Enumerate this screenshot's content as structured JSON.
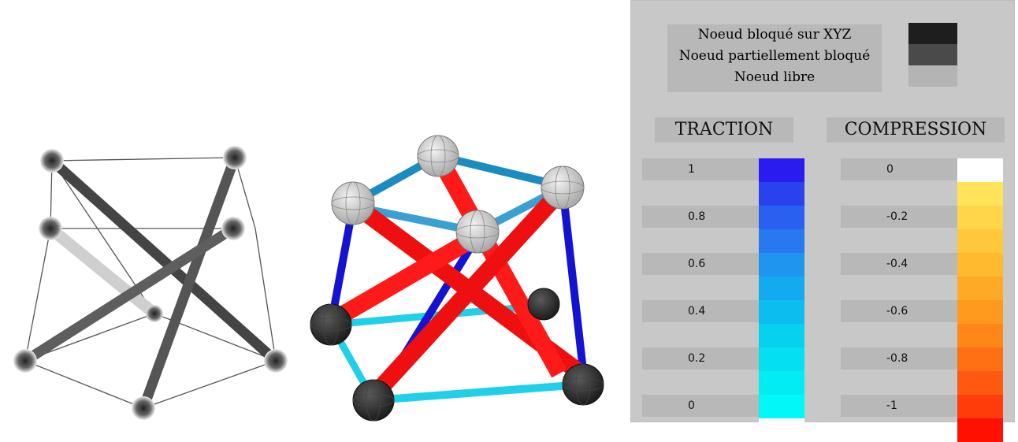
{
  "legend": {
    "items": [
      {
        "label": "Noeud bloqué sur XYZ",
        "color": "#1e1e1e"
      },
      {
        "label": "Noeud partiellement bloqué",
        "color": "#4a4a4a"
      },
      {
        "label": "Noeud libre",
        "color": "#b4b4b4"
      }
    ]
  },
  "traction": {
    "title": "TRACTION",
    "labels": [
      "1",
      "0.8",
      "0.6",
      "0.4",
      "0.2",
      "0"
    ],
    "colors": [
      "#2a1cf0",
      "#2a42ee",
      "#2a60f0",
      "#2878f0",
      "#1e96f0",
      "#14aaf0",
      "#0cbef0",
      "#06d2f0",
      "#04e0f2",
      "#02ecf4",
      "#00f8f8",
      "#ffffff"
    ]
  },
  "compression": {
    "title": "COMPRESSION",
    "labels": [
      "0",
      "-0.2",
      "-0.4",
      "-0.6",
      "-0.8",
      "-1"
    ],
    "colors": [
      "#ffffff",
      "#ffe45a",
      "#ffd64a",
      "#ffc83c",
      "#ffba30",
      "#ffaa26",
      "#ff9a1e",
      "#ff8618",
      "#ff7014",
      "#ff5810",
      "#ff3c0a",
      "#ff1000"
    ]
  },
  "figures": {
    "left_render": "tensegrity-grayscale",
    "right_render": "tensegrity-colored"
  }
}
